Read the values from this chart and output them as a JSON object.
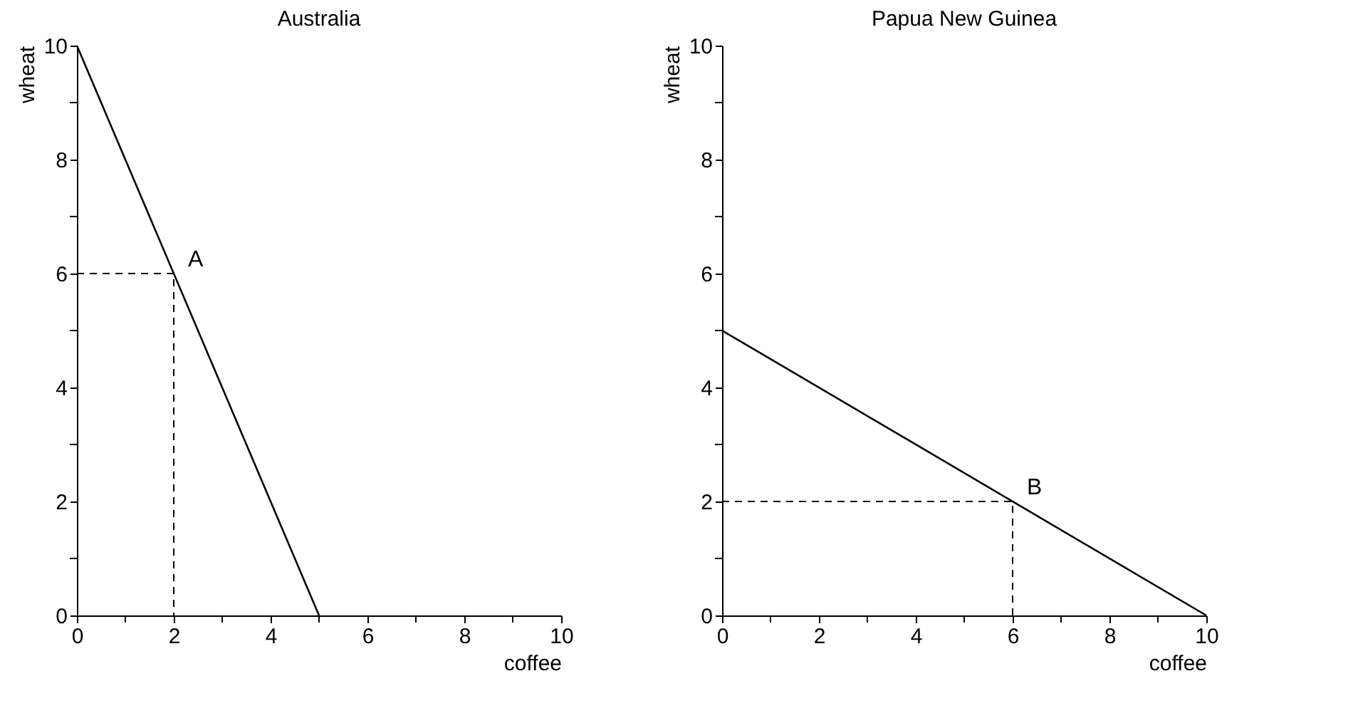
{
  "chart_data": [
    {
      "type": "line",
      "title": "Australia",
      "xlabel": "coffee",
      "ylabel": "wheat",
      "xlim": [
        0,
        10
      ],
      "ylim": [
        0,
        10
      ],
      "xticks": [
        0,
        {
          "value": 1,
          "label": null
        },
        2,
        {
          "value": 3,
          "label": null
        },
        4,
        {
          "value": 5,
          "label": null
        },
        6,
        {
          "value": 7,
          "label": null
        },
        8,
        {
          "value": 9,
          "label": null
        },
        10
      ],
      "yticks": [
        0,
        {
          "value": 1,
          "label": null
        },
        2,
        {
          "value": 3,
          "label": null
        },
        4,
        {
          "value": 5,
          "label": null
        },
        6,
        {
          "value": 7,
          "label": null
        },
        8,
        {
          "value": 9,
          "label": null
        },
        10
      ],
      "series": [
        {
          "type": "line",
          "x": [
            0,
            5
          ],
          "values": [
            10,
            0
          ],
          "color": "#000000",
          "line_style": "solid"
        },
        {
          "type": "line",
          "x": [
            0,
            2,
            2
          ],
          "values": [
            6,
            6,
            0
          ],
          "color": "#000000",
          "line_style": "dashed"
        }
      ],
      "annotations": [
        {
          "text": "A",
          "x": 2,
          "y": 6
        }
      ]
    },
    {
      "type": "line",
      "title": "Papua New Guinea",
      "xlabel": "coffee",
      "ylabel": "wheat",
      "xlim": [
        0,
        10
      ],
      "ylim": [
        0,
        10
      ],
      "xticks": [
        0,
        {
          "value": 1,
          "label": null
        },
        2,
        {
          "value": 3,
          "label": null
        },
        4,
        {
          "value": 5,
          "label": null
        },
        6,
        {
          "value": 7,
          "label": null
        },
        8,
        {
          "value": 9,
          "label": null
        },
        10
      ],
      "yticks": [
        0,
        {
          "value": 1,
          "label": null
        },
        2,
        {
          "value": 3,
          "label": null
        },
        4,
        {
          "value": 5,
          "label": null
        },
        6,
        {
          "value": 7,
          "label": null
        },
        8,
        {
          "value": 9,
          "label": null
        },
        10
      ],
      "series": [
        {
          "type": "line",
          "x": [
            0,
            10
          ],
          "values": [
            5,
            0
          ],
          "color": "#000000",
          "line_style": "solid"
        },
        {
          "type": "line",
          "x": [
            6,
            6,
            0
          ],
          "values": [
            0,
            2,
            2
          ],
          "color": "#000000",
          "line_style": "dashed"
        }
      ],
      "annotations": [
        {
          "text": "B",
          "x": 6,
          "y": 2
        }
      ]
    }
  ]
}
